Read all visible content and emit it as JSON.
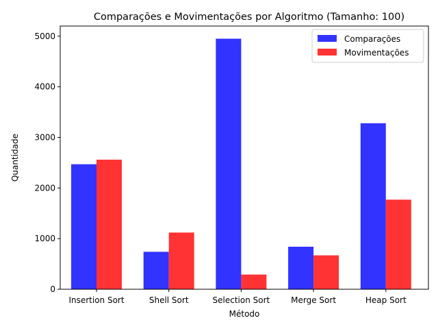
{
  "chart_data": {
    "type": "bar",
    "title": "Comparações e Movimentações por Algoritmo (Tamanho: 100)",
    "xlabel": "Método",
    "ylabel": "Quantidade",
    "categories": [
      "Insertion Sort",
      "Shell Sort",
      "Selection Sort",
      "Merge Sort",
      "Heap Sort"
    ],
    "series": [
      {
        "name": "Comparações",
        "color": "#3333ff",
        "values": [
          2470,
          740,
          4950,
          840,
          3280
        ]
      },
      {
        "name": "Movimentações",
        "color": "#ff3333",
        "values": [
          2560,
          1120,
          290,
          670,
          1770
        ]
      }
    ],
    "ylim": [
      0,
      5200
    ],
    "yticks": [
      0,
      1000,
      2000,
      3000,
      4000,
      5000
    ],
    "legend_position": "top-right",
    "grid": false
  }
}
